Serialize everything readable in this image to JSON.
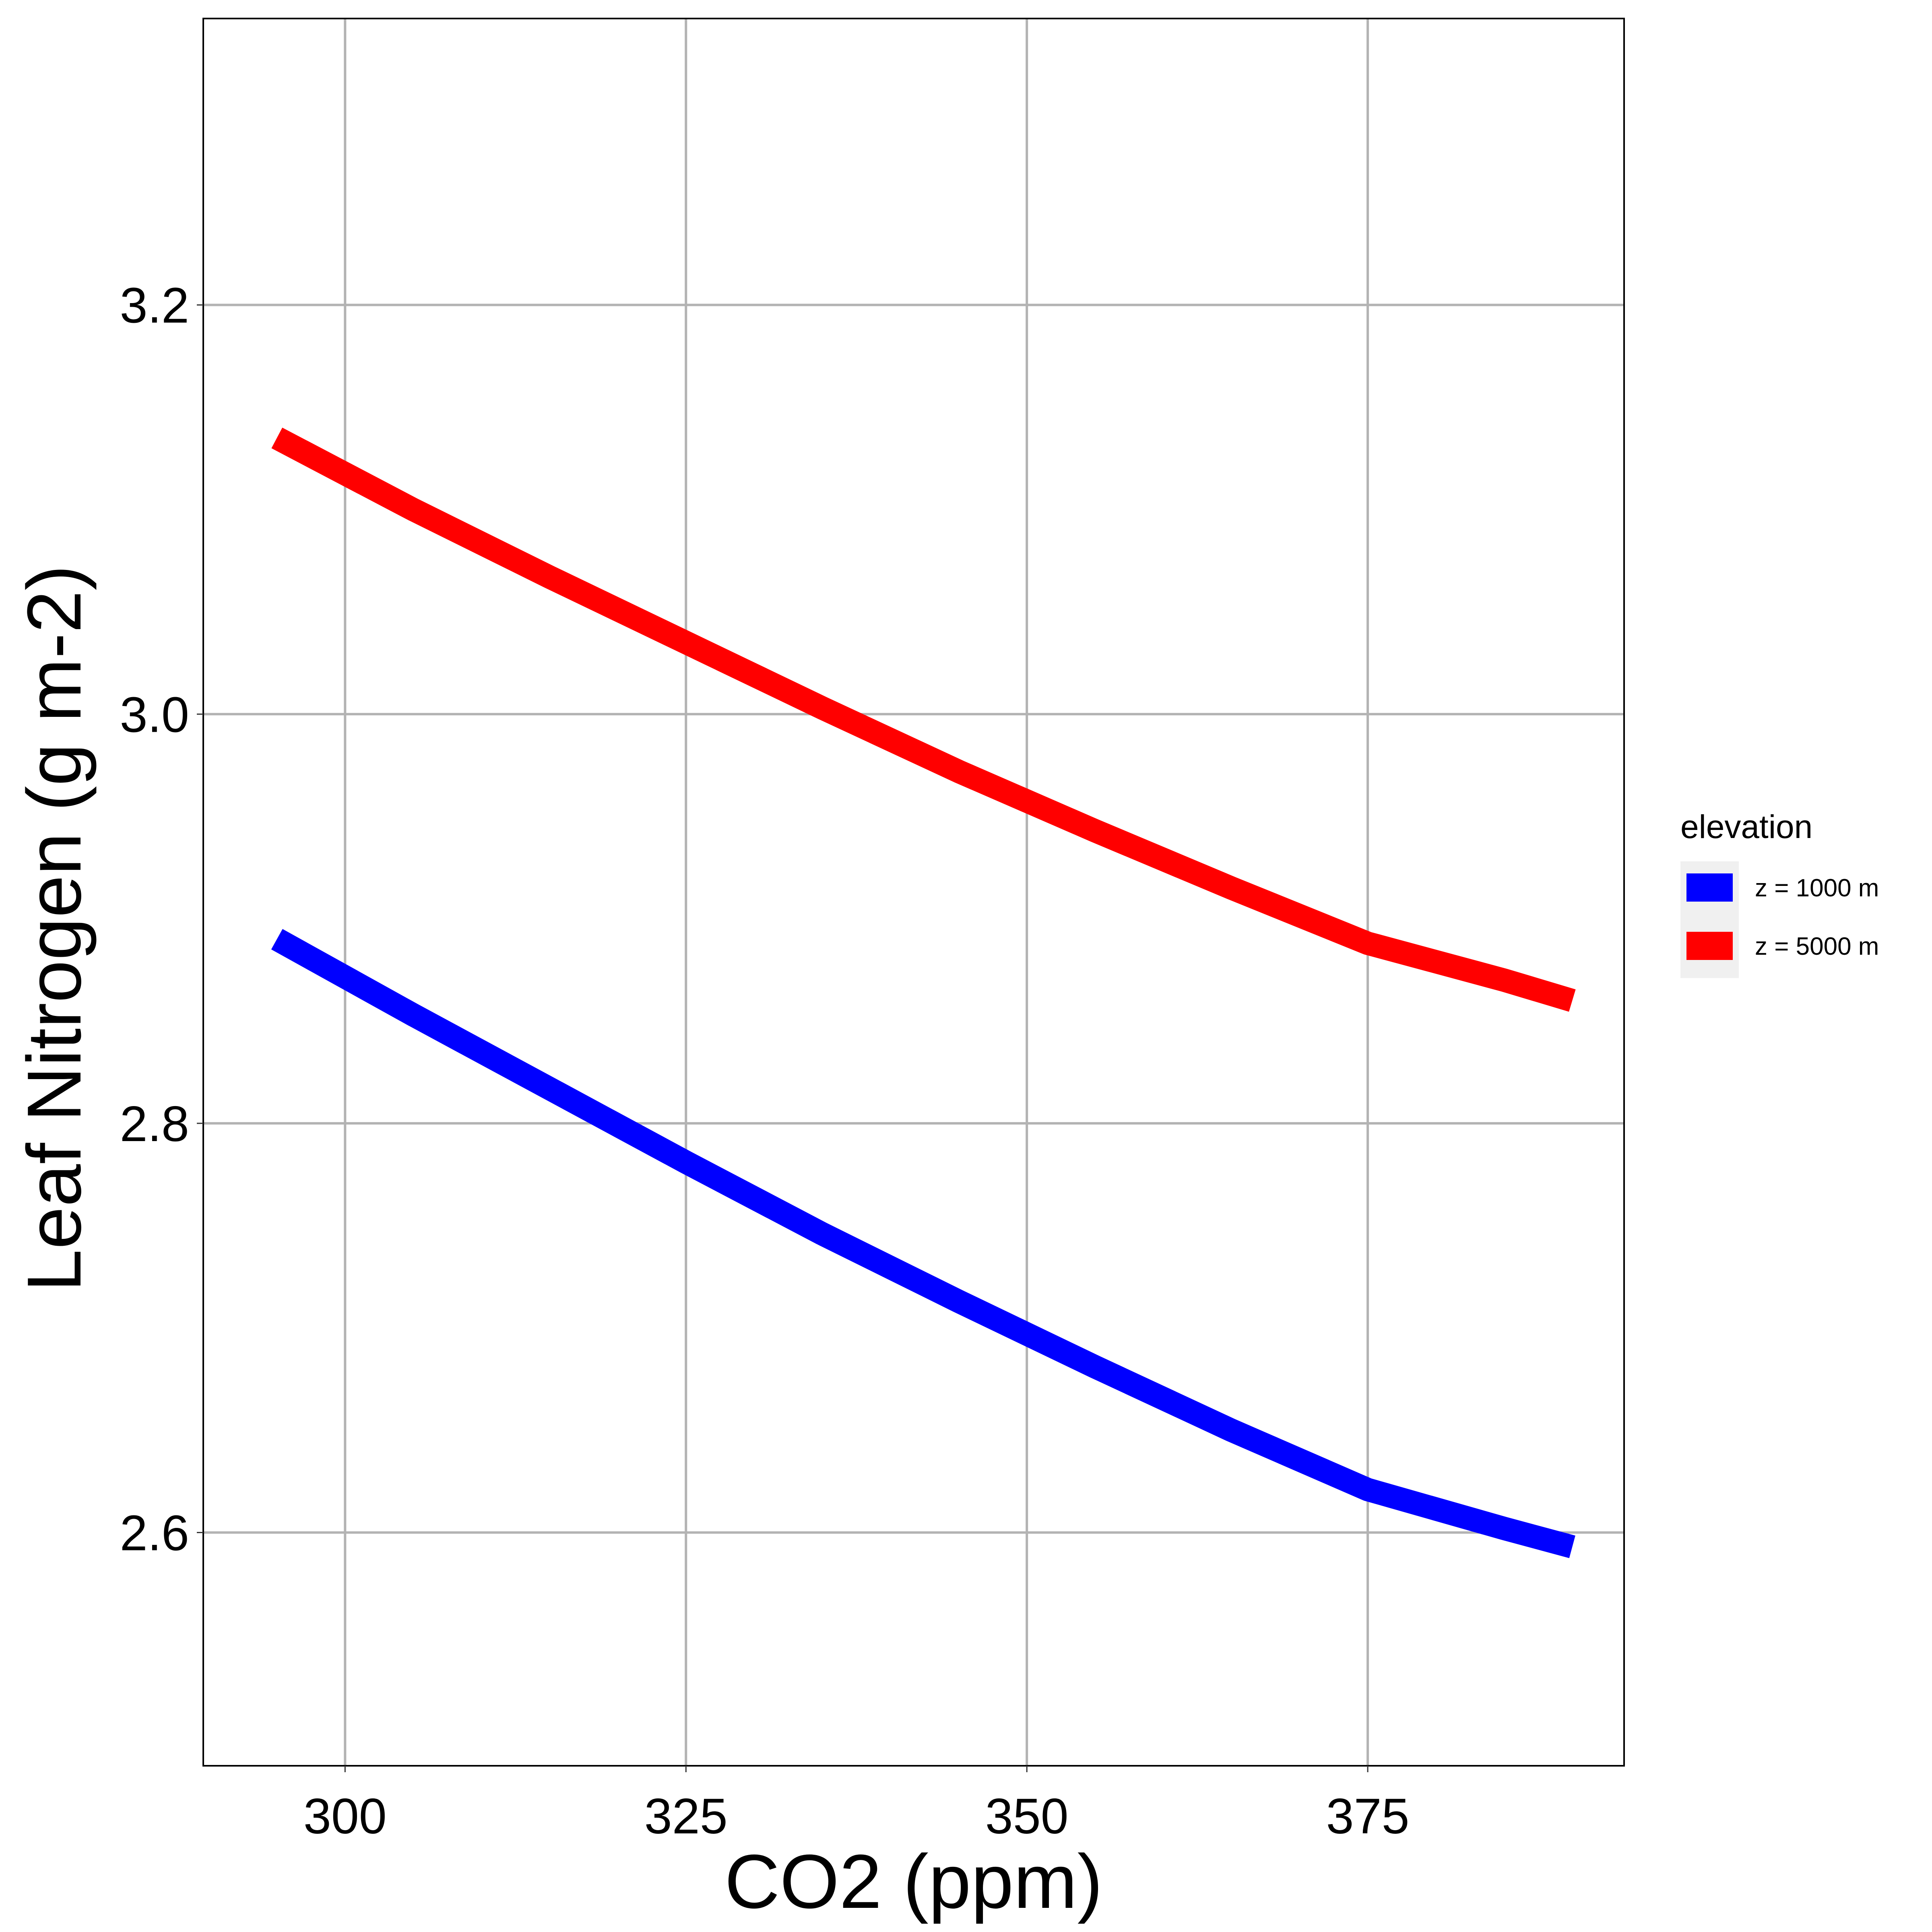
{
  "chart_data": {
    "type": "line",
    "xlabel": "CO2 (ppm)",
    "ylabel": "Leaf Nitrogen (g m-2)",
    "xlim": [
      289.6,
      393.8
    ],
    "ylim": [
      2.486,
      3.34
    ],
    "x_ticks": [
      300,
      325,
      350,
      375
    ],
    "x_tick_labels": [
      "300",
      "325",
      "350",
      "375"
    ],
    "y_ticks": [
      2.6,
      2.8,
      3.0,
      3.2
    ],
    "y_tick_labels": [
      "2.6",
      "2.8",
      "3.0",
      "3.2"
    ],
    "grid": true,
    "legend": {
      "title": "elevation",
      "position": "right"
    },
    "series": [
      {
        "name": "z = 1000 m",
        "color": "#0000ff",
        "x": [
          295,
          305,
          315,
          325,
          335,
          345,
          355,
          365,
          375,
          385,
          390
        ],
        "y": [
          2.89,
          2.853,
          2.817,
          2.781,
          2.746,
          2.713,
          2.681,
          2.65,
          2.621,
          2.602,
          2.593
        ]
      },
      {
        "name": "z = 5000 m",
        "color": "#ff0000",
        "x": [
          295,
          305,
          315,
          325,
          335,
          345,
          355,
          365,
          375,
          385,
          390
        ],
        "y": [
          3.135,
          3.1,
          3.067,
          3.035,
          3.003,
          2.972,
          2.943,
          2.915,
          2.888,
          2.87,
          2.86
        ]
      }
    ]
  }
}
